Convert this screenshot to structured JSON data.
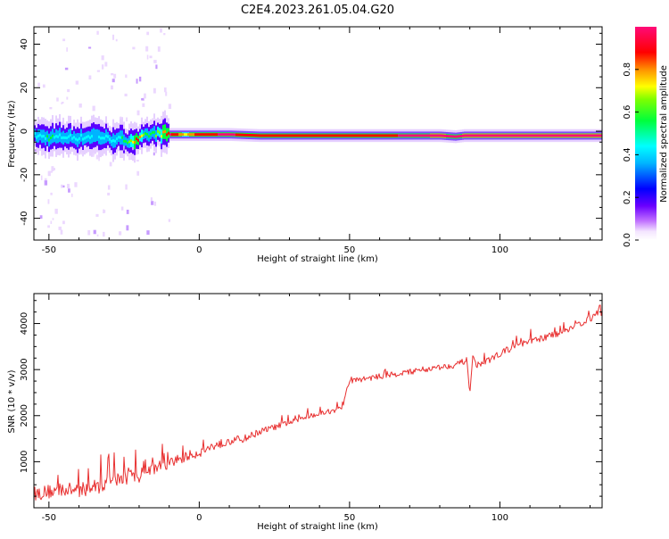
{
  "figure_title": "C2E4.2023.261.05.04.G20",
  "colors": {
    "snr_line": "#e83030",
    "axis": "#000000",
    "background": "#ffffff"
  },
  "chart_data": [
    {
      "type": "heatmap",
      "title": "C2E4.2023.261.05.04.G20",
      "xlabel": "Height of straight line (km)",
      "ylabel": "Frequency (Hz)",
      "xlim": [
        -55,
        134
      ],
      "ylim": [
        -50,
        48
      ],
      "x_ticks": [
        -50,
        0,
        50,
        100
      ],
      "x_tick_labels": [
        "-50",
        "0",
        "50",
        "100"
      ],
      "y_ticks": [
        -40,
        -20,
        0,
        20,
        40
      ],
      "y_tick_labels": [
        "-40",
        "-20",
        "0",
        "20",
        "40"
      ],
      "colorbar": {
        "label": "Normalized spectral amplitude",
        "range": [
          0,
          1
        ],
        "ticks": [
          0.0,
          0.2,
          0.4,
          0.6,
          0.8
        ],
        "tick_labels": [
          "0.0",
          "0.2",
          "0.4",
          "0.6",
          "0.8"
        ],
        "colormap": "rainbow (white - purple - blue - cyan - green - yellow - red - magenta)"
      },
      "ridge": {
        "description": "dominant spectral ridge frequency vs height",
        "heights_km": [
          -55,
          -50,
          -45,
          -40,
          -35,
          -30,
          -25,
          -21,
          -18,
          -15,
          -10,
          -5,
          0,
          10,
          20,
          40,
          60,
          80,
          85,
          88,
          92,
          100,
          120,
          134
        ],
        "frequency_hz": [
          -2,
          -3,
          -2.5,
          -3,
          -2,
          -3.5,
          -4,
          -4.5,
          -2,
          -1,
          -1.5,
          -1.5,
          -1.5,
          -1.5,
          -2,
          -2,
          -2,
          -2,
          -2.5,
          -2,
          -2,
          -2,
          -2,
          -2
        ],
        "peak_amplitude": [
          0.4,
          0.45,
          0.4,
          0.4,
          0.35,
          0.4,
          0.45,
          0.85,
          0.5,
          0.55,
          0.9,
          0.7,
          0.85,
          0.9,
          0.8,
          0.85,
          0.85,
          0.95,
          0.9,
          0.95,
          0.95,
          1.0,
          1.0,
          1.0
        ]
      }
    },
    {
      "type": "line",
      "xlabel": "Height of straight line (km)",
      "ylabel": "SNR (10 * v/v)",
      "xlim": [
        -55,
        134
      ],
      "ylim": [
        0,
        4650
      ],
      "x_ticks": [
        -50,
        0,
        50,
        100
      ],
      "x_tick_labels": [
        "-50",
        "0",
        "50",
        "100"
      ],
      "y_ticks": [
        1000,
        2000,
        3000,
        4000
      ],
      "y_tick_labels": [
        "1000",
        "2000",
        "3000",
        "4000"
      ],
      "series": [
        {
          "x": [
            -55,
            -50,
            -45,
            -40,
            -35,
            -30,
            -25,
            -20,
            -15,
            -10,
            -5,
            0,
            5,
            10,
            15,
            20,
            25,
            30,
            35,
            40,
            45,
            48,
            49,
            50,
            55,
            60,
            65,
            70,
            75,
            80,
            85,
            89,
            90,
            91,
            92,
            95,
            100,
            105,
            110,
            115,
            120,
            125,
            130,
            134
          ],
          "y": [
            300,
            350,
            400,
            380,
            450,
            550,
            650,
            700,
            850,
            950,
            1100,
            1200,
            1350,
            1450,
            1500,
            1650,
            1750,
            1850,
            1950,
            2050,
            2100,
            2200,
            2550,
            2750,
            2800,
            2850,
            2900,
            2950,
            3000,
            3050,
            3100,
            3200,
            2500,
            3300,
            3100,
            3150,
            3350,
            3500,
            3600,
            3700,
            3800,
            3950,
            4100,
            4250
          ],
          "noise_amplitude": [
            260,
            260,
            250,
            260,
            280,
            280,
            280,
            260,
            230,
            210,
            190,
            170,
            160,
            150,
            140,
            120,
            110,
            100,
            90,
            80,
            75,
            70,
            70,
            90,
            100,
            100,
            100,
            100,
            100,
            100,
            110,
            110,
            110,
            110,
            110,
            110,
            110,
            120,
            120,
            120,
            120,
            120,
            120,
            120
          ]
        }
      ]
    }
  ]
}
